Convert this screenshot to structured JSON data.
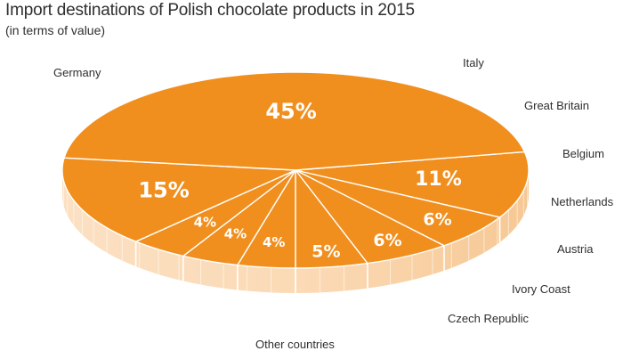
{
  "chart_data": {
    "type": "pie",
    "title": "Import destinations of Polish chocolate products in 2015",
    "subtitle": "(in terms of value)",
    "categories": [
      "Germany",
      "Italy",
      "Great Britain",
      "Belgium",
      "Netherlands",
      "Austria",
      "Ivory Coast",
      "Czech Republic",
      "Other countries"
    ],
    "values": [
      45,
      11,
      6,
      6,
      5,
      4,
      4,
      4,
      15
    ],
    "value_labels": [
      "45%",
      "11%",
      "6%",
      "6%",
      "5%",
      "4%",
      "4%",
      "4%",
      "15%"
    ],
    "unit": "%",
    "style": "3d",
    "colors": {
      "top": "#f08f1e",
      "side": "#fbd9b4",
      "side_dark": "#f6c490",
      "divider": "#ffffff",
      "text": "#2f2f2f"
    }
  }
}
